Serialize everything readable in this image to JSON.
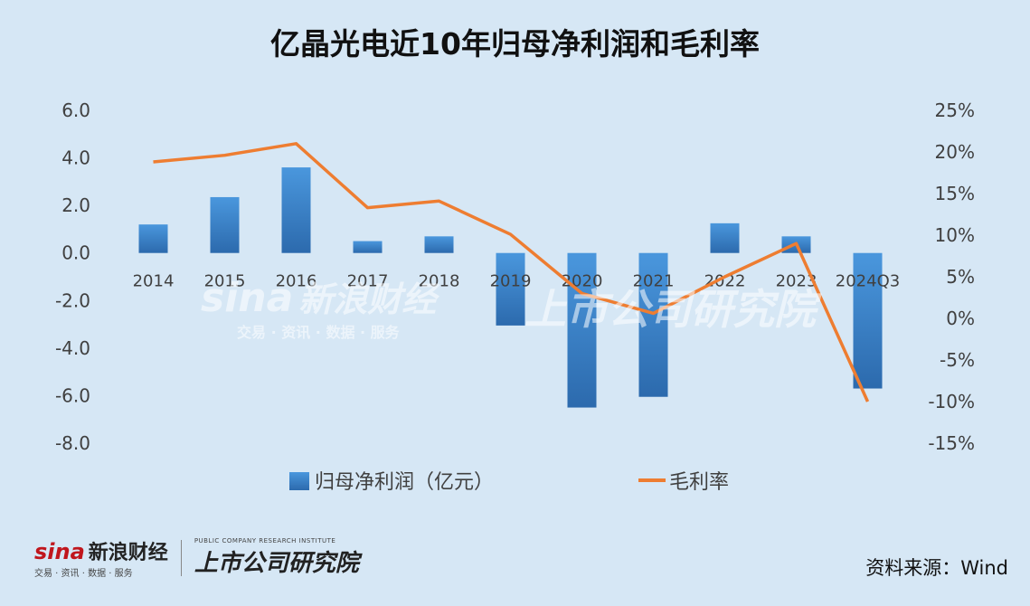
{
  "title": "亿晶光电近10年归母净利润和毛利率",
  "source": "资料来源：Wind",
  "watermark": {
    "brand": "sina",
    "brand_cn": "新浪财经",
    "tagline": "交易 · 资讯 · 数据 · 服务",
    "institute": "上市公司研究院",
    "institute_en": "PUBLIC COMPANY RESEARCH INSTITUTE"
  },
  "colors": {
    "bar": "#3d85cf",
    "line": "#ee7d31",
    "background": "#d6e7f5"
  },
  "chart_data": {
    "type": "bar",
    "categories": [
      "2014",
      "2015",
      "2016",
      "2017",
      "2018",
      "2019",
      "2020",
      "2021",
      "2022",
      "2023",
      "2024Q3"
    ],
    "series": [
      {
        "name": "归母净利润（亿元）",
        "type": "bar",
        "axis": "left",
        "values": [
          1.2,
          2.35,
          3.6,
          0.5,
          0.7,
          -3.05,
          -6.5,
          -6.05,
          1.25,
          0.7,
          -5.7
        ]
      },
      {
        "name": "毛利率",
        "type": "line",
        "axis": "right",
        "values": [
          18.8,
          19.6,
          21.0,
          13.3,
          14.1,
          10.1,
          3.0,
          0.6,
          5.0,
          9.0,
          -10.0
        ]
      }
    ],
    "y_left": {
      "ylim": [
        -8.0,
        6.0
      ],
      "ticks": [
        "6.0",
        "4.0",
        "2.0",
        "0.0",
        "-2.0",
        "-4.0",
        "-6.0",
        "-8.0"
      ]
    },
    "y_right": {
      "ylim": [
        -15,
        25
      ],
      "ticks": [
        "25%",
        "20%",
        "15%",
        "10%",
        "5%",
        "0%",
        "-5%",
        "-10%",
        "-15%"
      ]
    },
    "grid": false,
    "legend_position": "bottom"
  }
}
